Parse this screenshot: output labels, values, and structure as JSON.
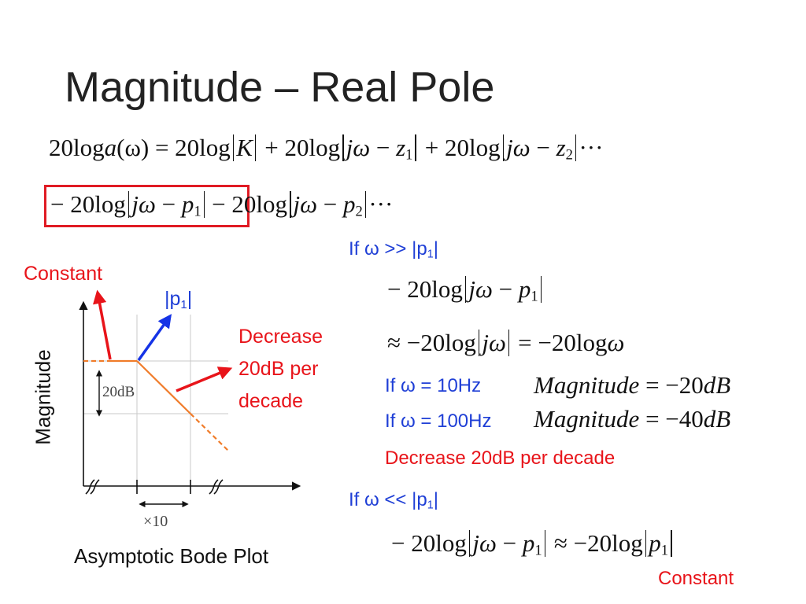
{
  "title": "Magnitude – Real Pole",
  "equations": {
    "line1": {
      "t1": "20log",
      "t2": "a",
      "t3": "(ω)",
      "t4": " = 20log",
      "t5": "K",
      "t6": " + 20log",
      "t7": "jω",
      "t8": " − ",
      "t9": "z",
      "t10": "1",
      "t11": " + 20log",
      "t12": "jω",
      "t13": " − ",
      "t14": "z",
      "t15": "2",
      "t16": "···"
    },
    "line2": {
      "t1": "− 20log",
      "t2": "jω",
      "t3": " − ",
      "t4": "p",
      "t5": "1",
      "t6": "− 20log",
      "t7": "jω",
      "t8": " − ",
      "t9": "p",
      "t10": "2",
      "t11": "···"
    }
  },
  "right_panel": {
    "cond1": {
      "pre": "If ω >> |p",
      "sub": "1",
      "post": "|"
    },
    "expr1": {
      "t1": "− 20log",
      "t2": "jω",
      "t3": " − ",
      "t4": "p",
      "t5": "1"
    },
    "expr2": {
      "t1": "≈ −20log",
      "t2": "jω",
      "t3": " = −20log",
      "t4": "ω"
    },
    "case1": {
      "label": "If ω = 10Hz",
      "lhs": "Magnitude",
      "rhs": " = −20",
      "unit": "dB"
    },
    "case2": {
      "label": "If ω = 100Hz",
      "lhs": "Magnitude",
      "rhs": " = −40",
      "unit": "dB"
    },
    "decrease_note": "Decrease 20dB per decade",
    "cond2": {
      "pre": "If ω << |p",
      "sub": "1",
      "post": "|"
    },
    "expr3": {
      "t1": "− 20log",
      "t2": "jω",
      "t3": " − ",
      "t4": "p",
      "t5": "1",
      "t6": " ≈ −20log",
      "t7": "p",
      "t8": "1"
    },
    "constant_note": "Constant"
  },
  "plot": {
    "y_axis_label": "Magnitude",
    "gap_label": "20dB",
    "decade_label": "×10",
    "caption": "Asymptotic Bode Plot",
    "constant_label": "Constant",
    "pole_label": {
      "pre": "|p",
      "sub": "1",
      "post": "|"
    },
    "decrease_label": {
      "line1": "Decrease",
      "line2": "20dB per",
      "line3": "decade"
    }
  },
  "colors": {
    "asymptote": "#f07c2a",
    "arrow_red": "#e8141a",
    "arrow_blue": "#1533e6",
    "box": "#e01b24"
  }
}
